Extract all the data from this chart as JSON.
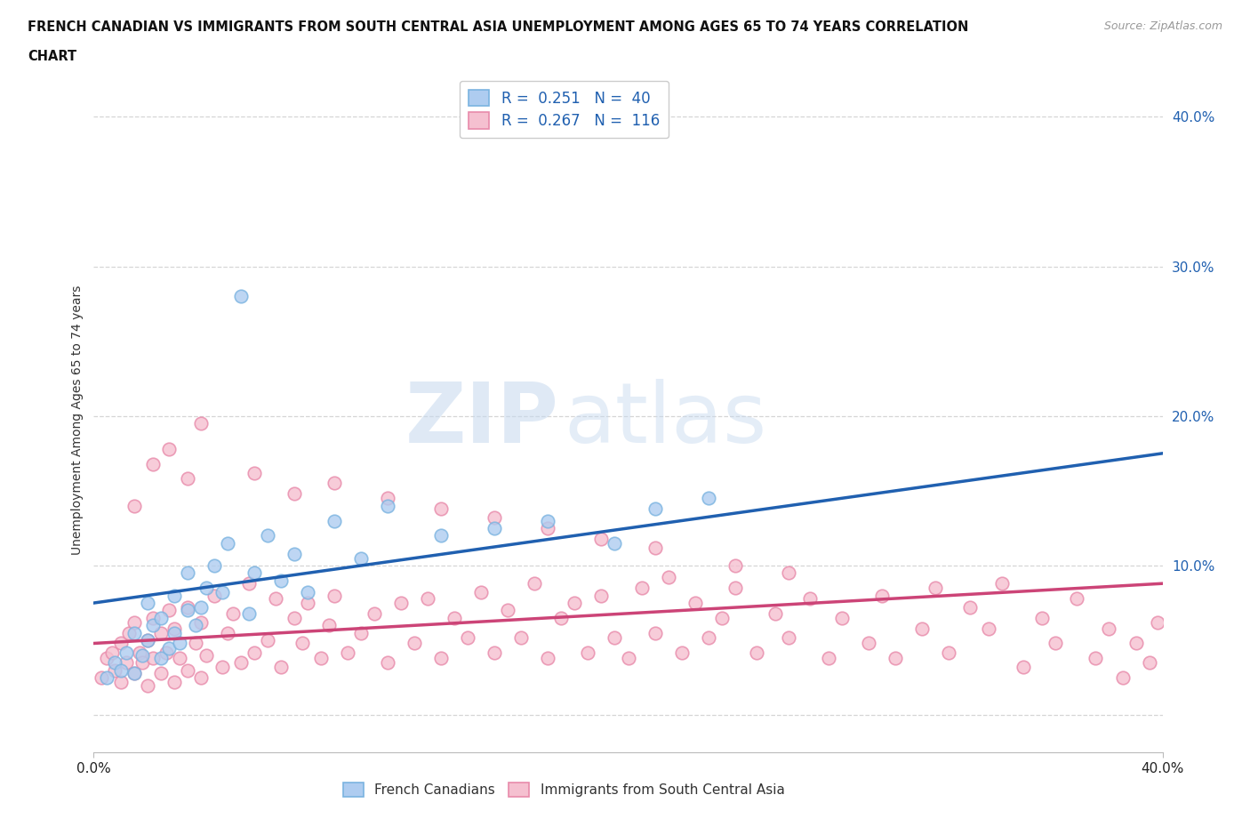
{
  "title_line1": "FRENCH CANADIAN VS IMMIGRANTS FROM SOUTH CENTRAL ASIA UNEMPLOYMENT AMONG AGES 65 TO 74 YEARS CORRELATION",
  "title_line2": "CHART",
  "source": "Source: ZipAtlas.com",
  "ylabel": "Unemployment Among Ages 65 to 74 years",
  "xmin": 0.0,
  "xmax": 0.4,
  "ymin": -0.025,
  "ymax": 0.42,
  "watermark_zip": "ZIP",
  "watermark_atlas": "atlas",
  "blue_color": "#7ab3e0",
  "pink_color": "#e88aaa",
  "blue_fill": "#aeccf0",
  "pink_fill": "#f5c0d0",
  "trend_blue_color": "#2060b0",
  "trend_pink_color": "#cc4477",
  "yticks": [
    0.0,
    0.1,
    0.2,
    0.3,
    0.4
  ],
  "ytick_labels": [
    "",
    "10.0%",
    "20.0%",
    "30.0%",
    "40.0%"
  ],
  "xticks": [
    0.0,
    0.4
  ],
  "xtick_labels": [
    "0.0%",
    "40.0%"
  ],
  "legend_r_n_color": "#2060b0",
  "legend_label1": "R =  0.251   N =  40",
  "legend_label2": "R =  0.267   N =  116",
  "bottom_label1": "French Canadians",
  "bottom_label2": "Immigrants from South Central Asia",
  "blue_scatter_x": [
    0.005,
    0.008,
    0.01,
    0.012,
    0.015,
    0.015,
    0.018,
    0.02,
    0.02,
    0.022,
    0.025,
    0.025,
    0.028,
    0.03,
    0.03,
    0.032,
    0.035,
    0.035,
    0.038,
    0.04,
    0.042,
    0.045,
    0.048,
    0.05,
    0.055,
    0.058,
    0.06,
    0.065,
    0.07,
    0.075,
    0.08,
    0.09,
    0.1,
    0.11,
    0.13,
    0.15,
    0.17,
    0.195,
    0.21,
    0.23
  ],
  "blue_scatter_y": [
    0.025,
    0.035,
    0.03,
    0.042,
    0.028,
    0.055,
    0.04,
    0.05,
    0.075,
    0.06,
    0.038,
    0.065,
    0.045,
    0.055,
    0.08,
    0.048,
    0.07,
    0.095,
    0.06,
    0.072,
    0.085,
    0.1,
    0.082,
    0.115,
    0.28,
    0.068,
    0.095,
    0.12,
    0.09,
    0.108,
    0.082,
    0.13,
    0.105,
    0.14,
    0.12,
    0.125,
    0.13,
    0.115,
    0.138,
    0.145
  ],
  "pink_scatter_x": [
    0.003,
    0.005,
    0.007,
    0.008,
    0.01,
    0.01,
    0.012,
    0.013,
    0.015,
    0.015,
    0.017,
    0.018,
    0.02,
    0.02,
    0.022,
    0.022,
    0.025,
    0.025,
    0.027,
    0.028,
    0.03,
    0.03,
    0.032,
    0.035,
    0.035,
    0.038,
    0.04,
    0.04,
    0.042,
    0.045,
    0.048,
    0.05,
    0.052,
    0.055,
    0.058,
    0.06,
    0.065,
    0.068,
    0.07,
    0.075,
    0.078,
    0.08,
    0.085,
    0.088,
    0.09,
    0.095,
    0.1,
    0.105,
    0.11,
    0.115,
    0.12,
    0.125,
    0.13,
    0.135,
    0.14,
    0.145,
    0.15,
    0.155,
    0.16,
    0.165,
    0.17,
    0.175,
    0.18,
    0.185,
    0.19,
    0.195,
    0.2,
    0.205,
    0.21,
    0.215,
    0.22,
    0.225,
    0.23,
    0.235,
    0.24,
    0.248,
    0.255,
    0.26,
    0.268,
    0.275,
    0.28,
    0.29,
    0.295,
    0.3,
    0.31,
    0.315,
    0.32,
    0.328,
    0.335,
    0.34,
    0.348,
    0.355,
    0.36,
    0.368,
    0.375,
    0.38,
    0.385,
    0.39,
    0.395,
    0.398,
    0.028,
    0.035,
    0.04,
    0.015,
    0.022,
    0.06,
    0.075,
    0.09,
    0.11,
    0.13,
    0.15,
    0.17,
    0.19,
    0.21,
    0.24,
    0.26
  ],
  "pink_scatter_y": [
    0.025,
    0.038,
    0.042,
    0.03,
    0.022,
    0.048,
    0.035,
    0.055,
    0.028,
    0.062,
    0.042,
    0.035,
    0.02,
    0.05,
    0.038,
    0.065,
    0.028,
    0.055,
    0.042,
    0.07,
    0.022,
    0.058,
    0.038,
    0.072,
    0.03,
    0.048,
    0.025,
    0.062,
    0.04,
    0.08,
    0.032,
    0.055,
    0.068,
    0.035,
    0.088,
    0.042,
    0.05,
    0.078,
    0.032,
    0.065,
    0.048,
    0.075,
    0.038,
    0.06,
    0.08,
    0.042,
    0.055,
    0.068,
    0.035,
    0.075,
    0.048,
    0.078,
    0.038,
    0.065,
    0.052,
    0.082,
    0.042,
    0.07,
    0.052,
    0.088,
    0.038,
    0.065,
    0.075,
    0.042,
    0.08,
    0.052,
    0.038,
    0.085,
    0.055,
    0.092,
    0.042,
    0.075,
    0.052,
    0.065,
    0.085,
    0.042,
    0.068,
    0.052,
    0.078,
    0.038,
    0.065,
    0.048,
    0.08,
    0.038,
    0.058,
    0.085,
    0.042,
    0.072,
    0.058,
    0.088,
    0.032,
    0.065,
    0.048,
    0.078,
    0.038,
    0.058,
    0.025,
    0.048,
    0.035,
    0.062,
    0.178,
    0.158,
    0.195,
    0.14,
    0.168,
    0.162,
    0.148,
    0.155,
    0.145,
    0.138,
    0.132,
    0.125,
    0.118,
    0.112,
    0.1,
    0.095
  ],
  "blue_trend_x": [
    0.0,
    0.4
  ],
  "blue_trend_y": [
    0.075,
    0.175
  ],
  "pink_trend_x": [
    0.0,
    0.4
  ],
  "pink_trend_y": [
    0.048,
    0.088
  ],
  "grid_color": "#cccccc",
  "background_color": "#ffffff"
}
